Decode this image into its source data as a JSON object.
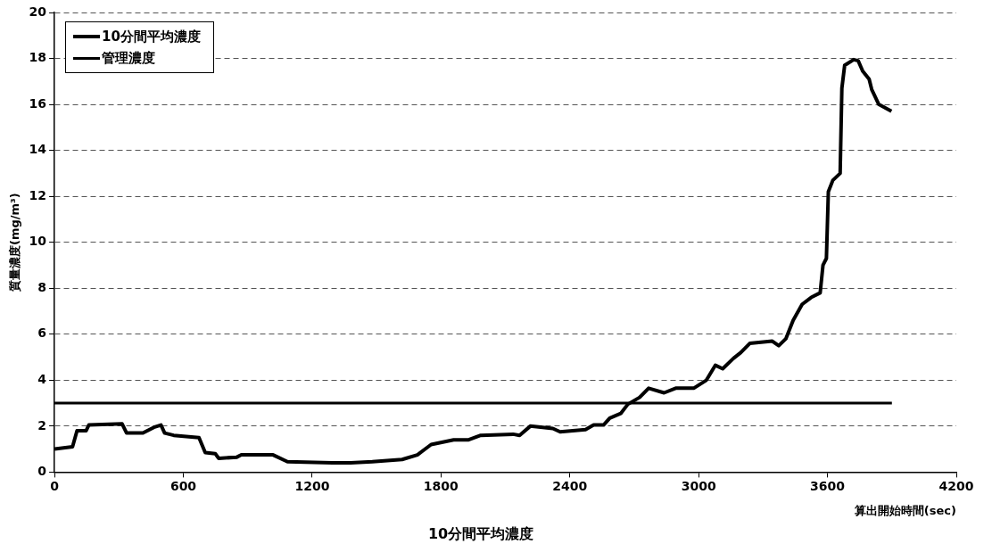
{
  "chart_data": {
    "type": "line",
    "title": "10分間平均濃度",
    "xlabel": "算出開始時間(sec)",
    "ylabel": "質量濃度(mg/m³)",
    "xlim": [
      0,
      4200
    ],
    "xticks": [
      0,
      600,
      1200,
      1800,
      2400,
      3000,
      3600,
      4200
    ],
    "ylim": [
      0,
      20
    ],
    "yticks": [
      0,
      2,
      4,
      6,
      8,
      10,
      12,
      14,
      16,
      18,
      20
    ],
    "grid": "y",
    "legend": "top left",
    "marker": "none",
    "line_style": "solid",
    "series": [
      {
        "name": "10分間平均濃度",
        "color": "#000000",
        "x": [
          0,
          84,
          105,
          147,
          160,
          315,
          336,
          412,
          463,
          496,
          513,
          555,
          673,
          702,
          749,
          765,
          849,
          870,
          1018,
          1085,
          1295,
          1379,
          1480,
          1619,
          1690,
          1754,
          1859,
          1926,
          1985,
          2136,
          2166,
          2216,
          2321,
          2355,
          2473,
          2511,
          2557,
          2586,
          2637,
          2670,
          2725,
          2767,
          2839,
          2893,
          2977,
          3036,
          3078,
          3112,
          3162,
          3196,
          3238,
          3343,
          3373,
          3406,
          3440,
          3482,
          3524,
          3566,
          3579,
          3595,
          3604,
          3625,
          3659,
          3667,
          3680,
          3722,
          3743,
          3764,
          3794,
          3806,
          3839,
          3898
        ],
        "values": [
          1.0,
          1.1,
          1.8,
          1.8,
          2.05,
          2.1,
          1.7,
          1.7,
          1.95,
          2.05,
          1.7,
          1.6,
          1.5,
          0.85,
          0.8,
          0.6,
          0.65,
          0.75,
          0.75,
          0.45,
          0.4,
          0.4,
          0.45,
          0.55,
          0.75,
          1.2,
          1.4,
          1.4,
          1.6,
          1.65,
          1.6,
          2.0,
          1.9,
          1.75,
          1.85,
          2.05,
          2.05,
          2.35,
          2.55,
          2.95,
          3.25,
          3.65,
          3.45,
          3.65,
          3.65,
          4.0,
          4.65,
          4.5,
          4.95,
          5.2,
          5.6,
          5.7,
          5.5,
          5.8,
          6.6,
          7.3,
          7.6,
          7.8,
          9.0,
          9.3,
          12.2,
          12.7,
          13.0,
          16.7,
          17.7,
          17.95,
          17.9,
          17.45,
          17.1,
          16.65,
          16.0,
          15.7
        ]
      },
      {
        "name": "管理濃度",
        "color": "#000000",
        "x": [
          0,
          3900
        ],
        "values": [
          3,
          3
        ]
      }
    ]
  }
}
